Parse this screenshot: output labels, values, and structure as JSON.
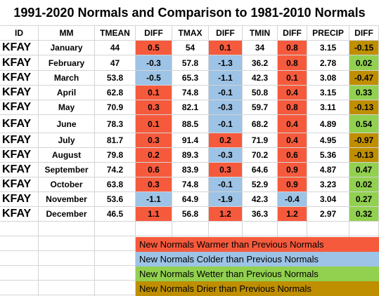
{
  "title": "1991-2020 Normals and Comparison to 1981-2010 Normals",
  "headers": [
    "ID",
    "MM",
    "TMEAN",
    "DIFF",
    "TMAX",
    "DIFF",
    "TMIN",
    "DIFF",
    "PRECIP",
    "DIFF"
  ],
  "rows": [
    [
      "KFAY",
      "January",
      "44",
      "0.5",
      "54",
      "0.1",
      "34",
      "0.8",
      "3.15",
      "-0.15"
    ],
    [
      "KFAY",
      "February",
      "47",
      "-0.3",
      "57.8",
      "-1.3",
      "36.2",
      "0.8",
      "2.78",
      "0.02"
    ],
    [
      "KFAY",
      "March",
      "53.8",
      "-0.5",
      "65.3",
      "-1.1",
      "42.3",
      "0.1",
      "3.08",
      "-0.47"
    ],
    [
      "KFAY",
      "April",
      "62.8",
      "0.1",
      "74.8",
      "-0.1",
      "50.8",
      "0.4",
      "3.15",
      "0.33"
    ],
    [
      "KFAY",
      "May",
      "70.9",
      "0.3",
      "82.1",
      "-0.3",
      "59.7",
      "0.8",
      "3.11",
      "-0.13"
    ],
    [
      "KFAY",
      "June",
      "78.3",
      "0.1",
      "88.5",
      "-0.1",
      "68.2",
      "0.4",
      "4.89",
      "0.54"
    ],
    [
      "KFAY",
      "July",
      "81.7",
      "0.3",
      "91.4",
      "0.2",
      "71.9",
      "0.4",
      "4.95",
      "-0.97"
    ],
    [
      "KFAY",
      "August",
      "79.8",
      "0.2",
      "89.3",
      "-0.3",
      "70.2",
      "0.6",
      "5.36",
      "-0.13"
    ],
    [
      "KFAY",
      "September",
      "74.2",
      "0.6",
      "83.9",
      "0.3",
      "64.6",
      "0.9",
      "4.87",
      "0.47"
    ],
    [
      "KFAY",
      "October",
      "63.8",
      "0.3",
      "74.8",
      "-0.1",
      "52.9",
      "0.9",
      "3.23",
      "0.02"
    ],
    [
      "KFAY",
      "November",
      "53.6",
      "-1.1",
      "64.9",
      "-1.9",
      "42.3",
      "-0.4",
      "3.04",
      "0.27"
    ],
    [
      "KFAY",
      "December",
      "46.5",
      "1.1",
      "56.8",
      "1.2",
      "36.3",
      "1.2",
      "2.97",
      "0.32"
    ]
  ],
  "legend": [
    {
      "label": "New Normals Warmer than Previous Normals",
      "color": "#f65a3d"
    },
    {
      "label": "New Normals Colder than Previous Normals",
      "color": "#9dc3e6"
    },
    {
      "label": "New Normals Wetter than Previous Normals",
      "color": "#92d050"
    },
    {
      "label": "New Normals Drier than Previous Normals",
      "color": "#bf8f00"
    }
  ]
}
